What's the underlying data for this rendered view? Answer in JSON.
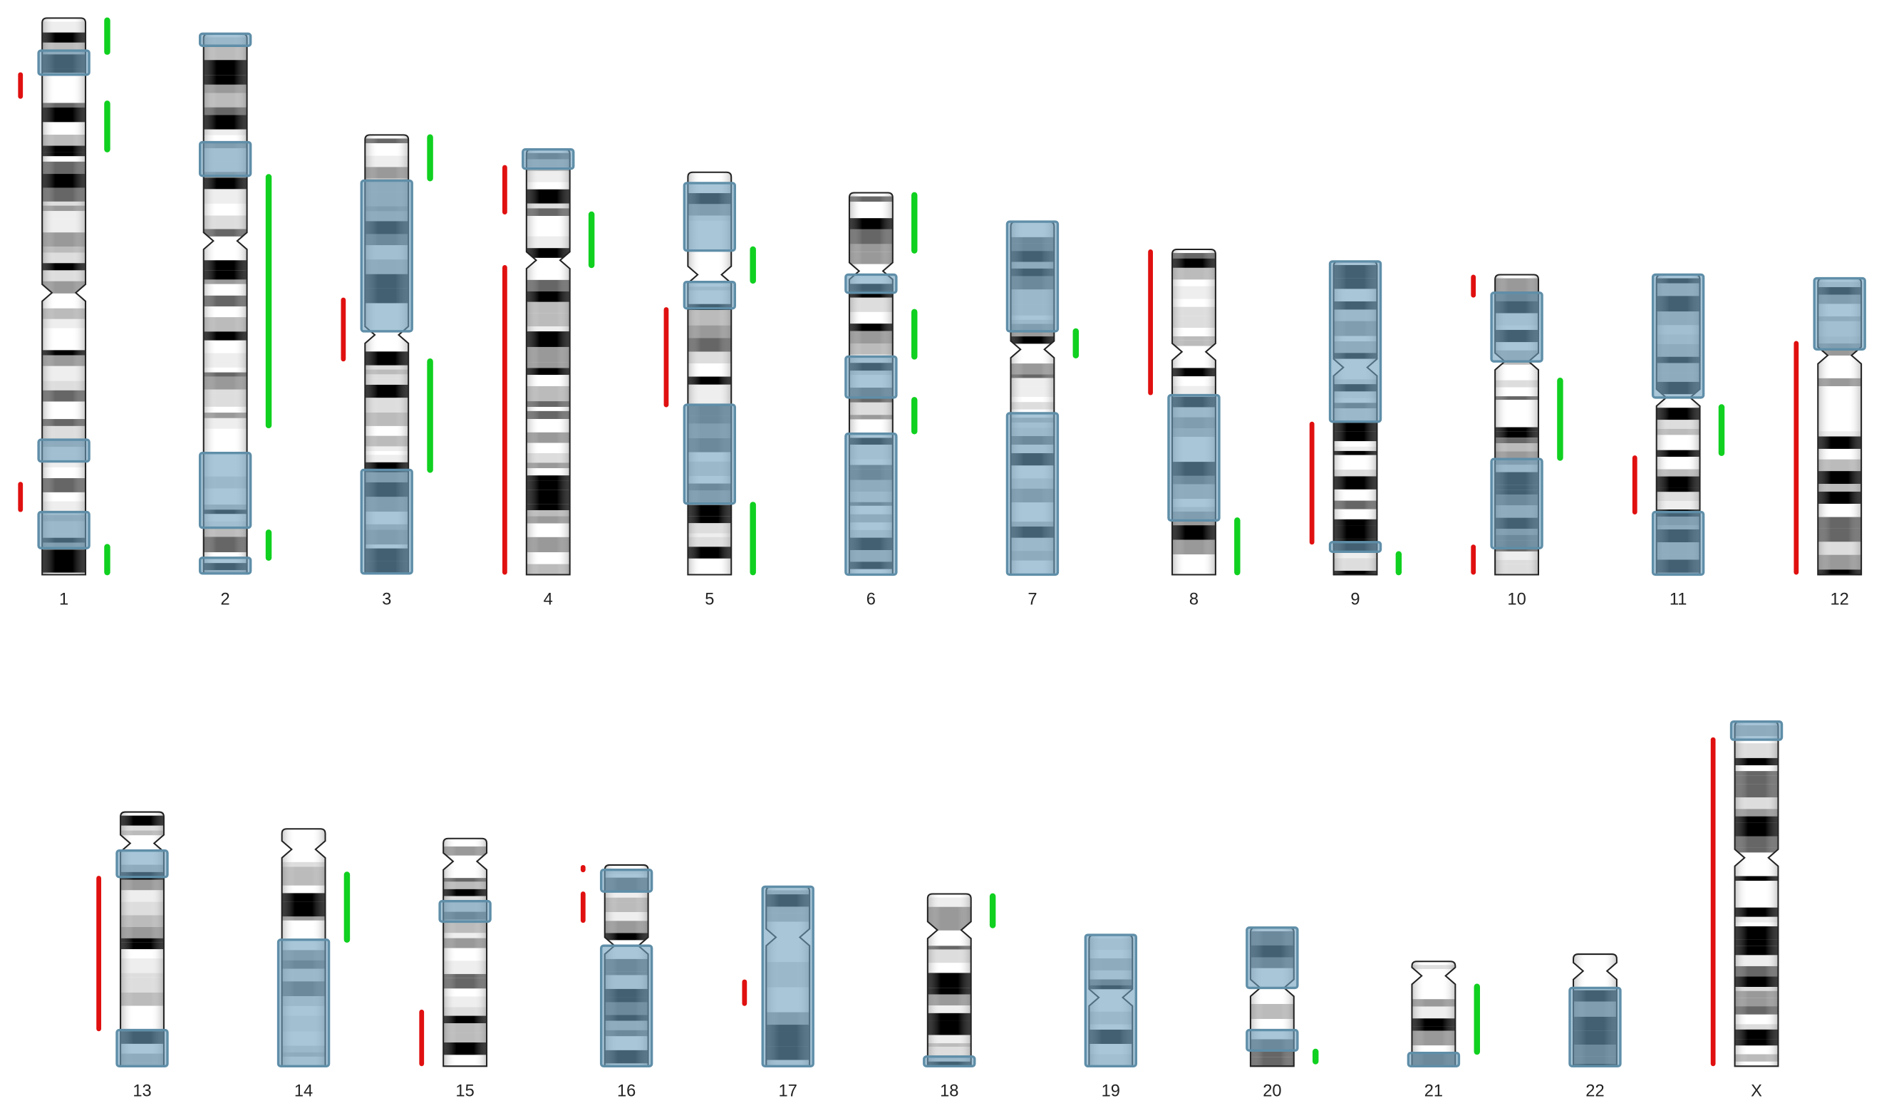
{
  "chromosomes": {
    "labels": [
      "1",
      "2",
      "3",
      "4",
      "5",
      "6",
      "7",
      "8",
      "9",
      "10",
      "11",
      "12",
      "13",
      "14",
      "15",
      "16",
      "17",
      "18",
      "19",
      "20",
      "21",
      "22",
      "X"
    ]
  }
}
